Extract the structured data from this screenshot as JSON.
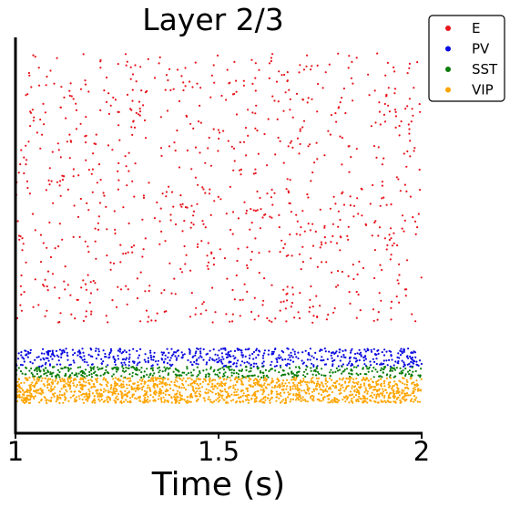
{
  "chart_data": {
    "type": "scatter",
    "title": "Layer 2/3",
    "xlabel": "Time (s)",
    "ylabel": "",
    "xlim": [
      1,
      2
    ],
    "x_ticks": [
      "1",
      "1.5",
      "2"
    ],
    "x_tick_values": [
      1,
      1.5,
      2
    ],
    "y_ticks": [],
    "grid": false,
    "legend_position": "top-right, outside plot area",
    "series": [
      {
        "name": "E",
        "color": "#e8141c",
        "neuron_band": [
          0.26,
          1.0
        ],
        "approx_spike_count": 900
      },
      {
        "name": "PV",
        "color": "#0a0ae0",
        "neuron_band": [
          0.14,
          0.19
        ],
        "approx_spike_count": 600
      },
      {
        "name": "SST",
        "color": "#0a7d0a",
        "neuron_band": [
          0.11,
          0.14
        ],
        "approx_spike_count": 450
      },
      {
        "name": "VIP",
        "color": "#ffa500",
        "neuron_band": [
          0.04,
          0.11
        ],
        "approx_spike_count": 1500
      }
    ]
  }
}
